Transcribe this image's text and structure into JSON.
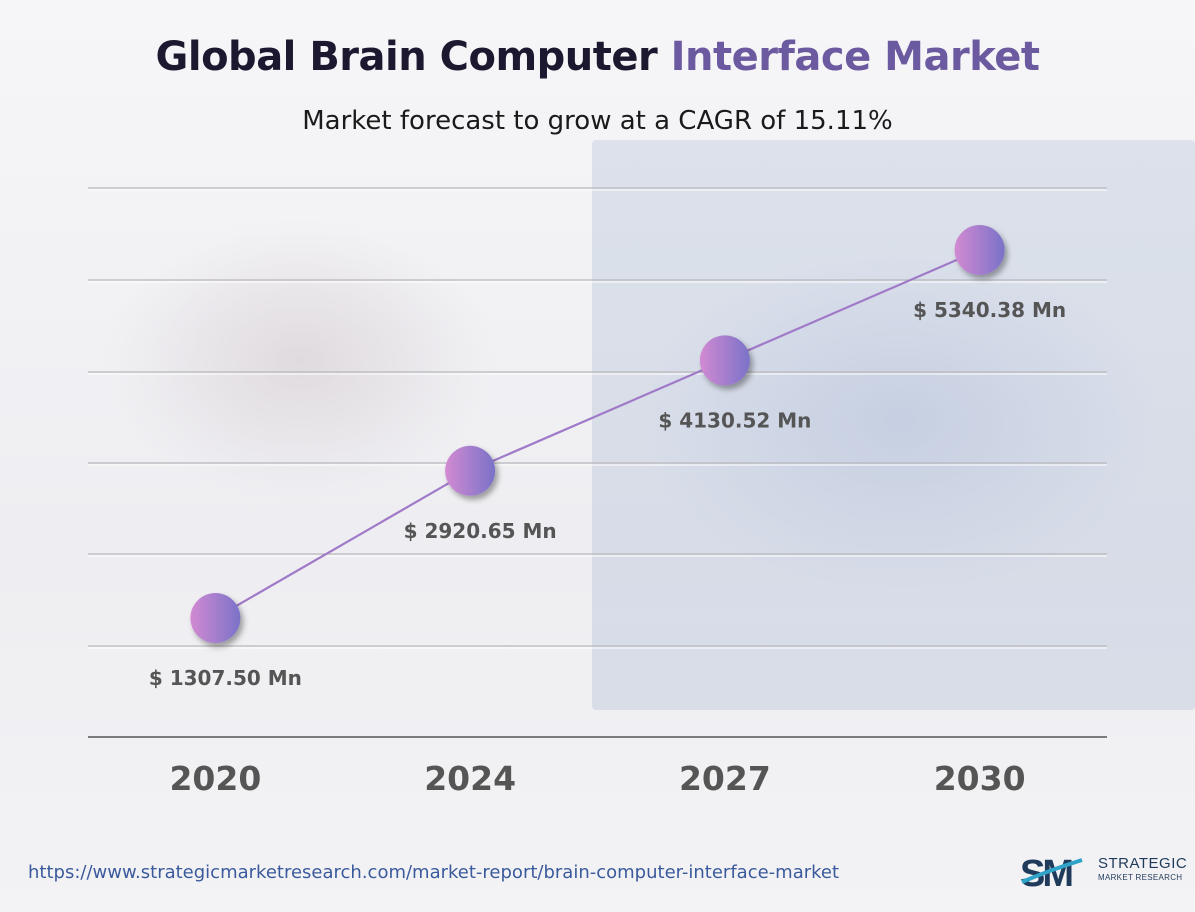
{
  "title_main": "Global Brain Computer ",
  "title_accent": "Interface Market",
  "subtitle": "Market forecast to grow at a CAGR of 15.11%",
  "footer": {
    "url": "https://www.strategicmarketresearch.com/market-report/brain-computer-interface-market",
    "logo_mark": "SM",
    "logo_line1": "STRATEGIC",
    "logo_line2": "MARKET RESEARCH"
  },
  "colors": {
    "line": "#a07ac8",
    "marker_start": "#d28ad2",
    "marker_end": "#7a72c8",
    "label": "#555555",
    "url": "#3a5a9c"
  },
  "chart_data": {
    "type": "line",
    "categories": [
      "2020",
      "2024",
      "2027",
      "2030"
    ],
    "values": [
      1307.5,
      2920.65,
      4130.52,
      5340.38
    ],
    "data_labels": [
      "$ 1307.50 Mn",
      "$ 2920.65 Mn",
      "$ 4130.52 Mn",
      "$ 5340.38 Mn"
    ],
    "grid": true,
    "legend": "none"
  }
}
